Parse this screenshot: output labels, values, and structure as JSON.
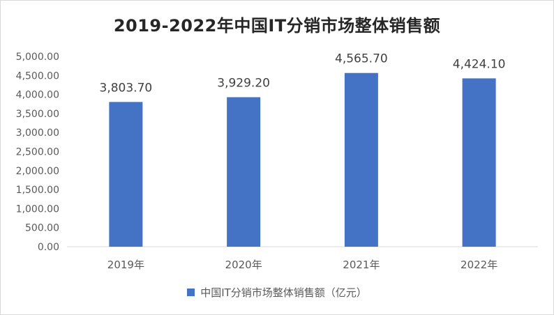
{
  "chart_data": {
    "type": "bar",
    "title": "2019-2022年中国IT分销市场整体销售额",
    "categories": [
      "2019年",
      "2020年",
      "2021年",
      "2022年"
    ],
    "series": [
      {
        "name": "中国IT分销市场整体销售额（亿元）",
        "values": [
          3803.7,
          3929.2,
          4565.7,
          4424.1
        ],
        "value_labels": [
          "3,803.70",
          "3,929.20",
          "4,565.70",
          "4,424.10"
        ],
        "color": "#4472c4"
      }
    ],
    "ylim": [
      0,
      5000
    ],
    "y_ticks": [
      0,
      500,
      1000,
      1500,
      2000,
      2500,
      3000,
      3500,
      4000,
      4500,
      5000
    ],
    "y_tick_labels": [
      "0.00",
      "500.00",
      "1,000.00",
      "1,500.00",
      "2,000.00",
      "2,500.00",
      "3,000.00",
      "3,500.00",
      "4,000.00",
      "4,500.00",
      "5,000.00"
    ],
    "grid": false,
    "legend_position": "bottom"
  }
}
